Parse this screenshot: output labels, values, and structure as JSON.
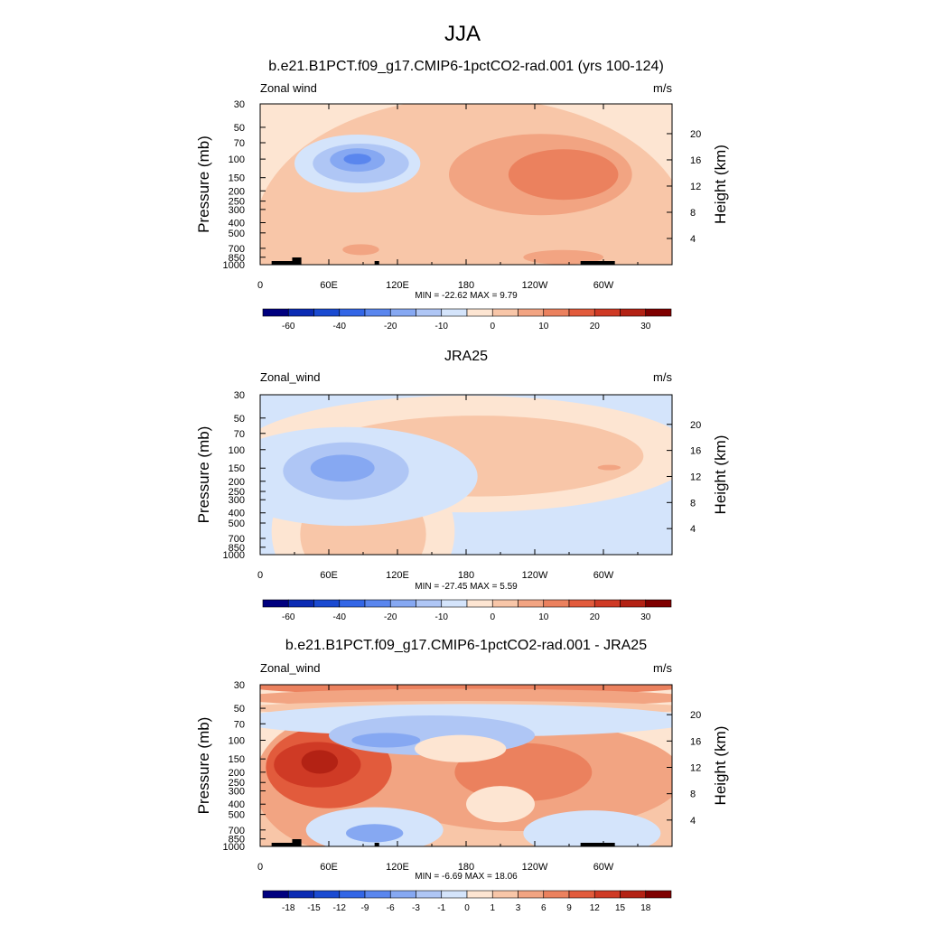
{
  "figure_title": "JJA",
  "chart_data": [
    {
      "type": "heatmap",
      "title": "b.e21.B1PCT.f09_g17.CMIP6-1pctCO2-rad.001 (yrs 100-124)",
      "left_label": "Zonal wind",
      "right_label": "m/s",
      "xlabel": "",
      "ylabel": "Pressure (mb)",
      "ylabel_right": "Height (km)",
      "x_ticks": [
        "0",
        "60E",
        "120E",
        "180",
        "120W",
        "60W"
      ],
      "x_tick_values": [
        0,
        60,
        120,
        180,
        240,
        300
      ],
      "xlim": [
        0,
        360
      ],
      "y_ticks": [
        "30",
        "50",
        "70",
        "100",
        "150",
        "200",
        "250",
        "300",
        "400",
        "500",
        "700",
        "850",
        "1000"
      ],
      "y_tick_values": [
        30,
        50,
        70,
        100,
        150,
        200,
        250,
        300,
        400,
        500,
        700,
        850,
        1000
      ],
      "ylim": [
        1000,
        30
      ],
      "y_scale": "log",
      "height_ticks": [
        "4",
        "8",
        "12",
        "16",
        "20"
      ],
      "height_tick_values": [
        4,
        8,
        12,
        16,
        20
      ],
      "stats": "MIN = -22.62  MAX =   9.79",
      "colorbar_labels": [
        "-60",
        "-40",
        "-20",
        "-10",
        "0",
        "10",
        "20",
        "30"
      ],
      "colorbar_label_bins": [
        1,
        3,
        5,
        7,
        9,
        11,
        13,
        15
      ],
      "colorbar_colors": [
        "#00007f",
        "#0b2bb3",
        "#1a4ad1",
        "#3366e6",
        "#5a86ee",
        "#86a8f2",
        "#afc6f5",
        "#d4e4fb",
        "#fde5d2",
        "#f8c6a8",
        "#f2a482",
        "#eb815e",
        "#e25b3c",
        "#cf3a25",
        "#b32214",
        "#7f0000"
      ],
      "blobs": [
        {
          "lon": 185,
          "p": 500,
          "rx": 190,
          "ry": 150,
          "level": 9
        },
        {
          "lon": 65,
          "p": 250,
          "rx": 45,
          "ry": 70,
          "level": 9
        },
        {
          "lon": 245,
          "p": 140,
          "rx": 80,
          "ry": 45,
          "level": 10
        },
        {
          "lon": 265,
          "p": 140,
          "rx": 48,
          "ry": 28,
          "level": 11
        },
        {
          "lon": 85,
          "p": 110,
          "rx": 55,
          "ry": 32,
          "level": 7
        },
        {
          "lon": 88,
          "p": 110,
          "rx": 42,
          "ry": 22,
          "level": 6
        },
        {
          "lon": 85,
          "p": 102,
          "rx": 24,
          "ry": 13,
          "level": 5
        },
        {
          "lon": 85,
          "p": 100,
          "rx": 12,
          "ry": 6,
          "level": 4
        },
        {
          "lon": 88,
          "p": 720,
          "rx": 16,
          "ry": 6,
          "level": 10
        },
        {
          "lon": 265,
          "p": 850,
          "rx": 35,
          "ry": 8,
          "level": 10
        }
      ]
    },
    {
      "type": "heatmap",
      "title": "JRA25",
      "left_label": "Zonal_wind",
      "right_label": "m/s",
      "xlabel": "",
      "ylabel": "Pressure (mb)",
      "ylabel_right": "Height (km)",
      "x_ticks": [
        "0",
        "60E",
        "120E",
        "180",
        "120W",
        "60W"
      ],
      "x_tick_values": [
        0,
        60,
        120,
        180,
        240,
        300
      ],
      "xlim": [
        0,
        360
      ],
      "y_ticks": [
        "30",
        "50",
        "70",
        "100",
        "150",
        "200",
        "250",
        "300",
        "400",
        "500",
        "700",
        "850",
        "1000"
      ],
      "y_tick_values": [
        30,
        50,
        70,
        100,
        150,
        200,
        250,
        300,
        400,
        500,
        700,
        850,
        1000
      ],
      "ylim": [
        1000,
        30
      ],
      "y_scale": "log",
      "height_ticks": [
        "4",
        "8",
        "12",
        "16",
        "20"
      ],
      "height_tick_values": [
        4,
        8,
        12,
        16,
        20
      ],
      "stats": "MIN = -27.45  MAX =   5.59",
      "colorbar_labels": [
        "-60",
        "-40",
        "-20",
        "-10",
        "0",
        "10",
        "20",
        "30"
      ],
      "colorbar_label_bins": [
        1,
        3,
        5,
        7,
        9,
        11,
        13,
        15
      ],
      "colorbar_colors": [
        "#00007f",
        "#0b2bb3",
        "#1a4ad1",
        "#3366e6",
        "#5a86ee",
        "#86a8f2",
        "#afc6f5",
        "#d4e4fb",
        "#fde5d2",
        "#f8c6a8",
        "#f2a482",
        "#eb815e",
        "#e25b3c",
        "#cf3a25",
        "#b32214",
        "#7f0000"
      ],
      "background_level": 7,
      "blobs": [
        {
          "lon": 180,
          "p": 110,
          "rx": 200,
          "ry": 65,
          "level": 8
        },
        {
          "lon": 190,
          "p": 115,
          "rx": 145,
          "ry": 45,
          "level": 9
        },
        {
          "lon": 90,
          "p": 600,
          "rx": 80,
          "ry": 90,
          "level": 8
        },
        {
          "lon": 90,
          "p": 640,
          "rx": 55,
          "ry": 60,
          "level": 9
        },
        {
          "lon": 75,
          "p": 180,
          "rx": 115,
          "ry": 55,
          "level": 7
        },
        {
          "lon": 75,
          "p": 160,
          "rx": 55,
          "ry": 32,
          "level": 6
        },
        {
          "lon": 72,
          "p": 150,
          "rx": 28,
          "ry": 15,
          "level": 5
        },
        {
          "lon": 305,
          "p": 148,
          "rx": 10,
          "ry": 3,
          "level": 10
        }
      ]
    },
    {
      "type": "heatmap",
      "title": "b.e21.B1PCT.f09_g17.CMIP6-1pctCO2-rad.001 - JRA25",
      "left_label": "Zonal_wind",
      "right_label": "m/s",
      "xlabel": "",
      "ylabel": "Pressure (mb)",
      "ylabel_right": "Height (km)",
      "x_ticks": [
        "0",
        "60E",
        "120E",
        "180",
        "120W",
        "60W"
      ],
      "x_tick_values": [
        0,
        60,
        120,
        180,
        240,
        300
      ],
      "xlim": [
        0,
        360
      ],
      "y_ticks": [
        "30",
        "50",
        "70",
        "100",
        "150",
        "200",
        "250",
        "300",
        "400",
        "500",
        "700",
        "850",
        "1000"
      ],
      "y_tick_values": [
        30,
        50,
        70,
        100,
        150,
        200,
        250,
        300,
        400,
        500,
        700,
        850,
        1000
      ],
      "ylim": [
        1000,
        30
      ],
      "y_scale": "log",
      "height_ticks": [
        "4",
        "8",
        "12",
        "16",
        "20"
      ],
      "height_tick_values": [
        4,
        8,
        12,
        16,
        20
      ],
      "stats": "MIN = -6.69  MAX = 18.06",
      "colorbar_labels": [
        "-18",
        "-15",
        "-12",
        "-9",
        "-6",
        "-3",
        "-1",
        "0",
        "1",
        "3",
        "6",
        "9",
        "12",
        "15",
        "18"
      ],
      "colorbar_label_bins": [
        1,
        2,
        3,
        4,
        5,
        6,
        7,
        8,
        9,
        10,
        11,
        12,
        13,
        14,
        15
      ],
      "colorbar_colors": [
        "#00007f",
        "#0b2bb3",
        "#1a4ad1",
        "#3366e6",
        "#5a86ee",
        "#86a8f2",
        "#afc6f5",
        "#d4e4fb",
        "#fde5d2",
        "#f8c6a8",
        "#f2a482",
        "#eb815e",
        "#e25b3c",
        "#cf3a25",
        "#b32214",
        "#7f0000"
      ],
      "blobs": [
        {
          "lon": 180,
          "p": 800,
          "rx": 200,
          "ry": 120,
          "level": 9
        },
        {
          "lon": 70,
          "p": 250,
          "rx": 75,
          "ry": 75,
          "level": 10
        },
        {
          "lon": 230,
          "p": 220,
          "rx": 140,
          "ry": 60,
          "level": 10
        },
        {
          "lon": 230,
          "p": 200,
          "rx": 60,
          "ry": 32,
          "level": 11
        },
        {
          "lon": 60,
          "p": 180,
          "rx": 55,
          "ry": 45,
          "level": 12
        },
        {
          "lon": 50,
          "p": 170,
          "rx": 38,
          "ry": 25,
          "level": 13
        },
        {
          "lon": 52,
          "p": 160,
          "rx": 16,
          "ry": 13,
          "level": 14
        },
        {
          "lon": 180,
          "p": 30,
          "rx": 200,
          "ry": 12,
          "level": 11
        },
        {
          "lon": 180,
          "p": 40,
          "rx": 200,
          "ry": 10,
          "level": 10
        },
        {
          "lon": 180,
          "p": 50,
          "rx": 200,
          "ry": 8,
          "level": 9
        },
        {
          "lon": 180,
          "p": 65,
          "rx": 200,
          "ry": 18,
          "level": 7
        },
        {
          "lon": 150,
          "p": 90,
          "rx": 90,
          "ry": 22,
          "level": 6
        },
        {
          "lon": 110,
          "p": 100,
          "rx": 30,
          "ry": 8,
          "level": 5
        },
        {
          "lon": 175,
          "p": 120,
          "rx": 40,
          "ry": 15,
          "level": 8
        },
        {
          "lon": 210,
          "p": 400,
          "rx": 30,
          "ry": 20,
          "level": 8
        },
        {
          "lon": 100,
          "p": 700,
          "rx": 60,
          "ry": 25,
          "level": 7
        },
        {
          "lon": 290,
          "p": 750,
          "rx": 60,
          "ry": 25,
          "level": 7
        },
        {
          "lon": 100,
          "p": 750,
          "rx": 25,
          "ry": 10,
          "level": 5
        }
      ]
    }
  ]
}
